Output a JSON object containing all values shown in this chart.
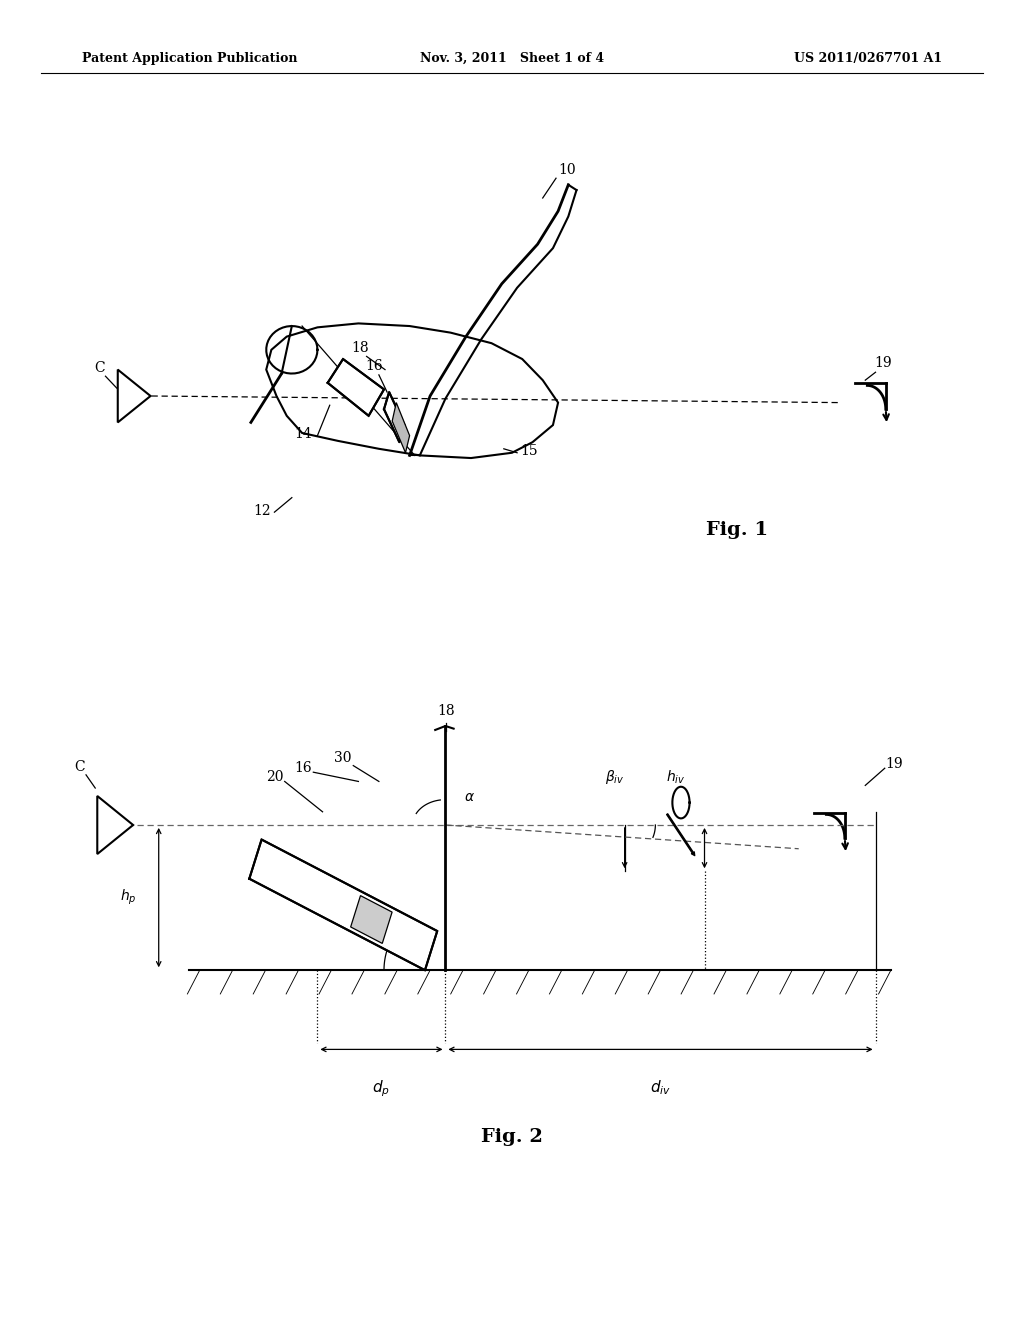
{
  "background_color": "#ffffff",
  "header_left": "Patent Application Publication",
  "header_center": "Nov. 3, 2011   Sheet 1 of 4",
  "header_right": "US 2011/0267701 A1",
  "fig1_label": "Fig. 1",
  "fig2_label": "Fig. 2"
}
